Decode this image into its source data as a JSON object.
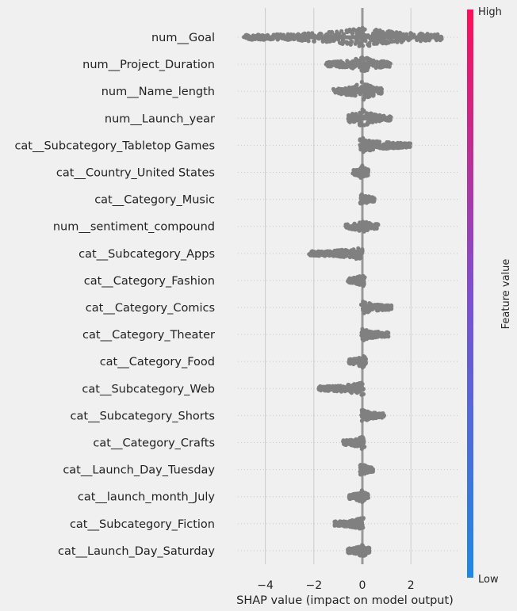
{
  "chart_data": {
    "type": "scatter",
    "subtype": "shap-beeswarm",
    "xlabel": "SHAP value (impact on model output)",
    "xlim": [
      -5.0,
      3.6
    ],
    "xticks": [
      -4,
      -2,
      0,
      2
    ],
    "grid": true,
    "dot_color": "#808080",
    "colorbar": {
      "label": "Feature value",
      "high_label": "High",
      "low_label": "Low",
      "high_color": "#ff0d57",
      "mid_color": "#7d4fd1",
      "low_color": "#1e88e5"
    },
    "features": [
      {
        "name": "num__Goal",
        "min": -4.9,
        "max": 3.3,
        "center": 0.0,
        "density": 1.0
      },
      {
        "name": "num__Project_Duration",
        "min": -1.5,
        "max": 1.2,
        "center": 0.0,
        "density": 0.8
      },
      {
        "name": "num__Name_length",
        "min": -1.2,
        "max": 0.8,
        "center": 0.0,
        "density": 1.0
      },
      {
        "name": "num__Launch_year",
        "min": -0.6,
        "max": 1.2,
        "center": 0.0,
        "density": 0.9
      },
      {
        "name": "cat__Subcategory_Tabletop Games",
        "min": -0.1,
        "max": 2.0,
        "center": 0.0,
        "density": 0.7
      },
      {
        "name": "cat__Country_United States",
        "min": -0.4,
        "max": 0.25,
        "center": 0.0,
        "density": 0.7
      },
      {
        "name": "cat__Category_Music",
        "min": -0.1,
        "max": 0.5,
        "center": 0.0,
        "density": 0.6
      },
      {
        "name": "num__sentiment_compound",
        "min": -0.7,
        "max": 0.65,
        "center": 0.0,
        "density": 0.6
      },
      {
        "name": "cat__Subcategory_Apps",
        "min": -2.2,
        "max": 0.05,
        "center": 0.0,
        "density": 0.6
      },
      {
        "name": "cat__Category_Fashion",
        "min": -0.6,
        "max": 0.1,
        "center": 0.0,
        "density": 0.6
      },
      {
        "name": "cat__Category_Comics",
        "min": -0.05,
        "max": 1.2,
        "center": 0.0,
        "density": 0.6
      },
      {
        "name": "cat__Category_Theater",
        "min": -0.05,
        "max": 1.1,
        "center": 0.0,
        "density": 0.6
      },
      {
        "name": "cat__Category_Food",
        "min": -0.55,
        "max": 0.15,
        "center": 0.0,
        "density": 0.6
      },
      {
        "name": "cat__Subcategory_Web",
        "min": -1.8,
        "max": 0.05,
        "center": 0.0,
        "density": 0.6
      },
      {
        "name": "cat__Subcategory_Shorts",
        "min": -0.05,
        "max": 0.9,
        "center": 0.0,
        "density": 0.6
      },
      {
        "name": "cat__Category_Crafts",
        "min": -0.8,
        "max": 0.1,
        "center": 0.0,
        "density": 0.6
      },
      {
        "name": "cat__Launch_Day_Tuesday",
        "min": -0.1,
        "max": 0.45,
        "center": 0.0,
        "density": 0.6
      },
      {
        "name": "cat__launch_month_July",
        "min": -0.55,
        "max": 0.25,
        "center": 0.0,
        "density": 0.6
      },
      {
        "name": "cat__Subcategory_Fiction",
        "min": -1.15,
        "max": 0.05,
        "center": 0.0,
        "density": 0.6
      },
      {
        "name": "cat__Launch_Day_Saturday",
        "min": -0.6,
        "max": 0.3,
        "center": 0.0,
        "density": 0.6
      }
    ]
  }
}
